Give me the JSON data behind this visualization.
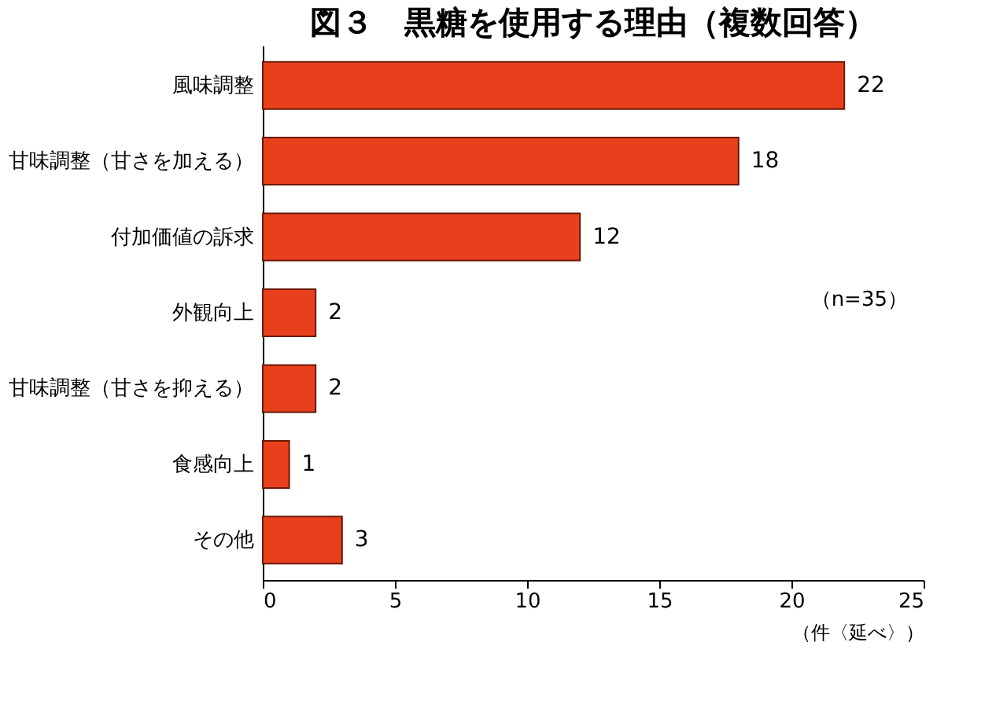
{
  "chart_data": {
    "type": "bar",
    "orientation": "horizontal",
    "title": "図３　黒糖を使用する理由（複数回答）",
    "categories": [
      "風味調整",
      "甘味調整（甘さを加える）",
      "付加価値の訴求",
      "外観向上",
      "甘味調整（甘さを抑える）",
      "食感向上",
      "その他"
    ],
    "values": [
      22,
      18,
      12,
      2,
      2,
      1,
      3
    ],
    "color": "#e8401c",
    "xlim": [
      0,
      25
    ],
    "xticks": [
      0,
      5,
      10,
      15,
      20,
      25
    ],
    "xlabel": "（件〈延べ〉）",
    "data_labels": true,
    "grid": false,
    "annotations": [
      "（n=35）"
    ]
  }
}
